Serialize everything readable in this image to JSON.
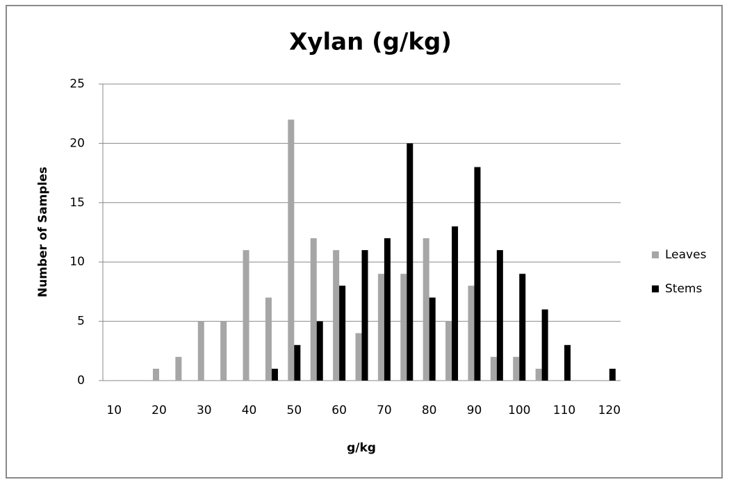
{
  "chart_data": {
    "type": "bar",
    "title": "Xylan (g/kg)",
    "x_label": "g/kg",
    "y_label": "Number of Samples",
    "categories": [
      10,
      null,
      20,
      null,
      30,
      null,
      40,
      null,
      50,
      null,
      60,
      null,
      70,
      null,
      80,
      null,
      90,
      null,
      100,
      null,
      110,
      null,
      120
    ],
    "series": [
      {
        "name": "Leaves",
        "color": "#a6a6a6",
        "values": [
          0,
          0,
          1,
          2,
          5,
          5,
          11,
          7,
          22,
          12,
          11,
          4,
          9,
          9,
          12,
          5,
          8,
          2,
          2,
          1,
          0,
          0,
          0
        ]
      },
      {
        "name": "Stems",
        "color": "#000000",
        "values": [
          0,
          0,
          0,
          0,
          0,
          0,
          0,
          1,
          3,
          5,
          8,
          11,
          12,
          20,
          7,
          13,
          18,
          11,
          9,
          6,
          3,
          0,
          1
        ]
      }
    ],
    "ylim": [
      0,
      25
    ],
    "yticks": [
      0,
      5,
      10,
      15,
      20,
      25
    ],
    "grid": true,
    "legend": "right"
  }
}
